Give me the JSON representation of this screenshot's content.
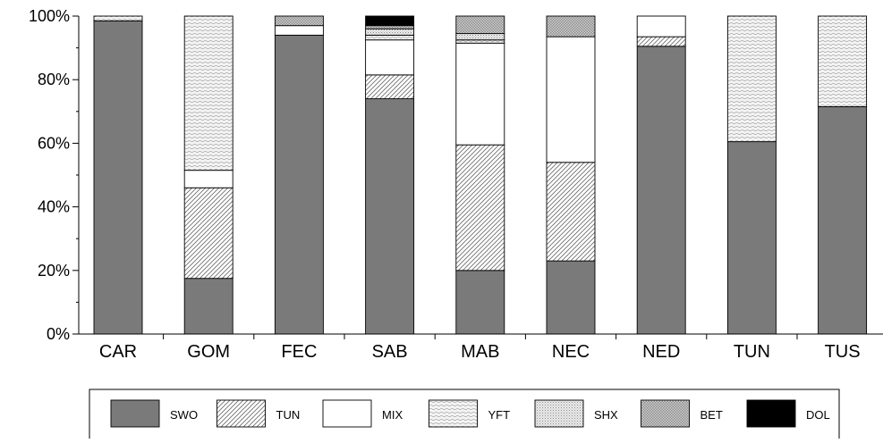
{
  "chart_data": {
    "type": "bar",
    "stacked": true,
    "percent": true,
    "categories": [
      "CAR",
      "GOM",
      "FEC",
      "SAB",
      "MAB",
      "NEC",
      "NED",
      "TUN",
      "TUS"
    ],
    "series": [
      {
        "name": "SWO",
        "values": [
          98.5,
          17.5,
          94.0,
          74.0,
          20.0,
          23.0,
          90.5,
          60.5,
          71.5
        ]
      },
      {
        "name": "TUN",
        "values": [
          0.0,
          28.5,
          0.0,
          7.5,
          39.5,
          31.0,
          3.0,
          0.0,
          0.0
        ]
      },
      {
        "name": "MIX",
        "values": [
          0.0,
          5.5,
          3.0,
          11.0,
          32.0,
          39.5,
          6.5,
          0.0,
          0.0
        ]
      },
      {
        "name": "YFT",
        "values": [
          1.5,
          48.5,
          0.0,
          1.5,
          1.0,
          0.0,
          0.0,
          39.5,
          28.5
        ]
      },
      {
        "name": "SHX",
        "values": [
          0.0,
          0.0,
          0.0,
          2.0,
          2.0,
          0.0,
          0.0,
          0.0,
          0.0
        ]
      },
      {
        "name": "BET",
        "values": [
          0.0,
          0.0,
          3.0,
          1.0,
          5.5,
          6.5,
          0.0,
          0.0,
          0.0
        ]
      },
      {
        "name": "DOL",
        "values": [
          0.0,
          0.0,
          0.0,
          3.0,
          0.0,
          0.0,
          0.0,
          0.0,
          0.0
        ]
      }
    ],
    "series_colors": {
      "SWO": "#7a7a7a",
      "TUN": "#ffffff",
      "MIX": "#ffffff",
      "YFT": "#f2f2f2",
      "SHX": "#e0e0e0",
      "BET": "#c4c4c4",
      "DOL": "#000000"
    },
    "series_patterns": {
      "SWO": "solid-gray",
      "TUN": "diagonal-hatch",
      "MIX": "plain-white",
      "YFT": "fine-wavy",
      "SHX": "fine-dots",
      "BET": "checker",
      "DOL": "solid-black"
    },
    "y_tick_labels": [
      "0%",
      "20%",
      "40%",
      "60%",
      "80%",
      "100%"
    ],
    "y_ticks": [
      0,
      20,
      40,
      60,
      80,
      100
    ],
    "ylim": [
      0,
      100
    ],
    "title": "",
    "xlabel": "",
    "ylabel": "",
    "grid": false,
    "legend_position": "bottom"
  }
}
